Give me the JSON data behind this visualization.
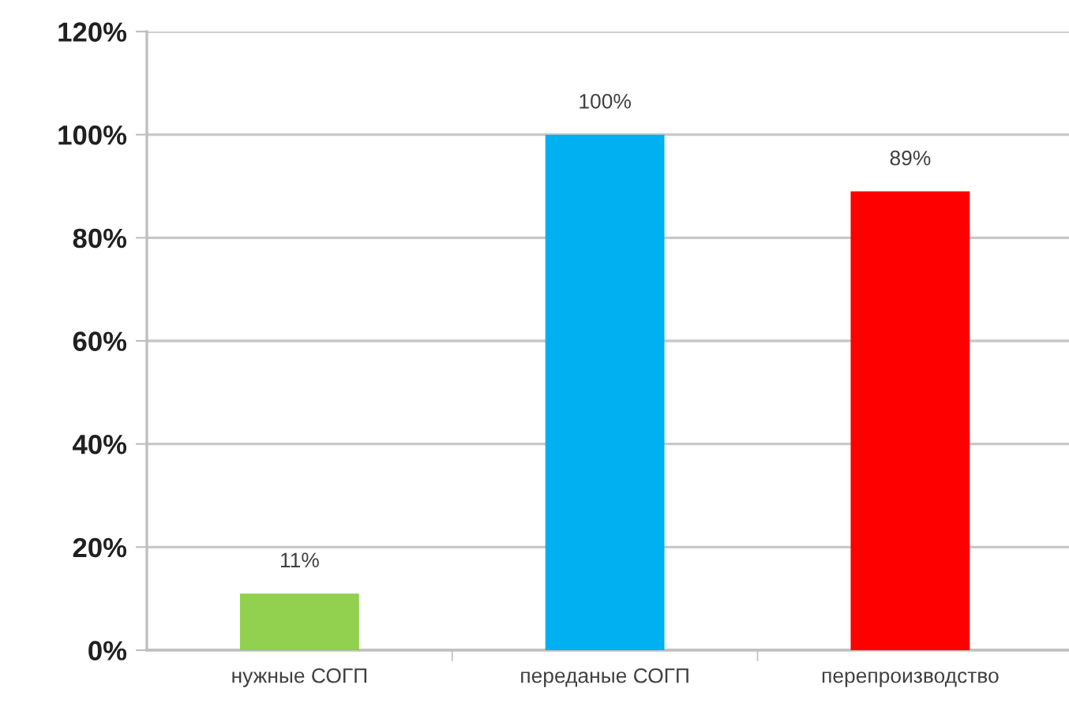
{
  "chart_data": {
    "type": "bar",
    "categories": [
      "нужные СОГП",
      "переданые СОГП",
      "перепроизводство"
    ],
    "values": [
      11,
      100,
      89
    ],
    "colors": [
      "#92d050",
      "#00b0f0",
      "#ff0000"
    ],
    "value_labels": [
      "11%",
      "100%",
      "89%"
    ],
    "ylim": [
      0,
      120
    ],
    "yticks": [
      {
        "value": 0,
        "label": "0%"
      },
      {
        "value": 20,
        "label": "20%"
      },
      {
        "value": 40,
        "label": "40%"
      },
      {
        "value": 60,
        "label": "60%"
      },
      {
        "value": 80,
        "label": "80%"
      },
      {
        "value": 100,
        "label": "100%"
      },
      {
        "value": 120,
        "label": "120%"
      }
    ],
    "grid": "y",
    "legend": false
  }
}
